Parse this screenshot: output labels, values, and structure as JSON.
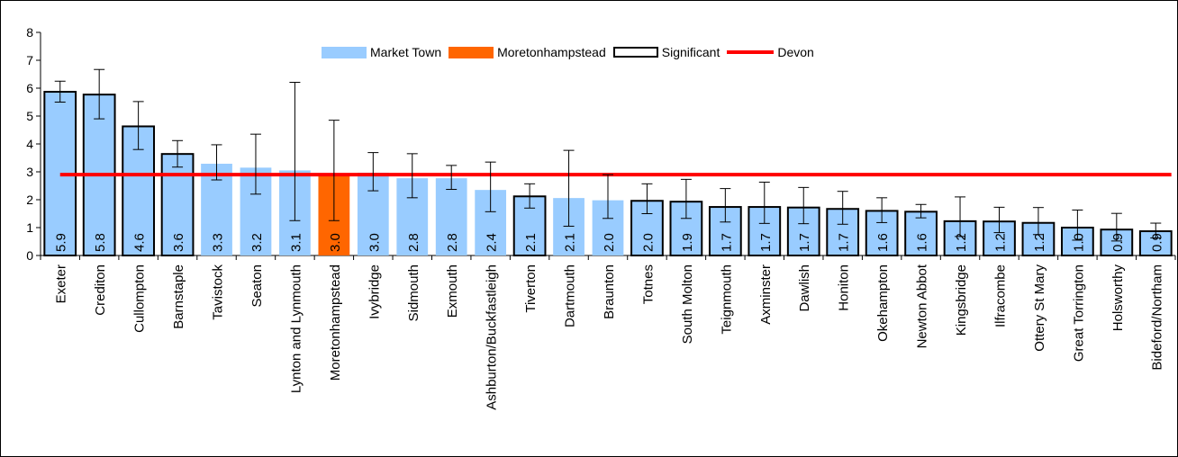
{
  "chart_data": {
    "type": "bar",
    "title": "",
    "xlabel": "",
    "ylabel": "",
    "ylim": [
      0,
      8
    ],
    "yticks": [
      "0",
      "1",
      "2",
      "3",
      "4",
      "5",
      "6",
      "7",
      "8"
    ],
    "grid": false,
    "legend_position": "top",
    "legend": [
      "Market Town",
      "Moretonhampstead",
      "Significant",
      "Devon"
    ],
    "reference_line": {
      "name": "Devon",
      "value": 2.9,
      "color": "#ff0000"
    },
    "colors": {
      "market_town": "#99ccff",
      "moretonhampstead": "#ff6600",
      "significant_border": "#000000"
    },
    "categories": [
      "Exeter",
      "Crediton",
      "Cullompton",
      "Barnstaple",
      "Tavistock",
      "Seaton",
      "Lynton and Lynmouth",
      "Moretonhampstead",
      "Ivybridge",
      "Sidmouth",
      "Exmouth",
      "Ashburton/Buckfastleigh",
      "Tiverton",
      "Dartmouth",
      "Braunton",
      "Totnes",
      "South Molton",
      "Teignmouth",
      "Axminster",
      "Dawlish",
      "Honiton",
      "Okehampton",
      "Newton Abbot",
      "Kingsbridge",
      "Ilfracombe",
      "Ottery St Mary",
      "Great Torrington",
      "Holsworthy",
      "Bideford/Northam"
    ],
    "values": [
      5.87,
      5.77,
      4.63,
      3.64,
      3.29,
      3.15,
      3.05,
      2.95,
      2.97,
      2.77,
      2.77,
      2.35,
      2.12,
      2.06,
      1.98,
      1.96,
      1.93,
      1.74,
      1.74,
      1.72,
      1.67,
      1.6,
      1.57,
      1.23,
      1.22,
      1.17,
      1.0,
      0.93,
      0.87
    ],
    "labels": [
      "5.9",
      "5.8",
      "4.6",
      "3.6",
      "3.3",
      "3.2",
      "3.1",
      "3.0",
      "3.0",
      "2.8",
      "2.8",
      "2.4",
      "2.1",
      "2.1",
      "2.0",
      "2.0",
      "1.9",
      "1.7",
      "1.7",
      "1.7",
      "1.7",
      "1.6",
      "1.6",
      "1.2",
      "1.2",
      "1.2",
      "1.0",
      "0.9",
      "0.9"
    ],
    "error_low": [
      5.5,
      4.9,
      3.8,
      3.17,
      2.71,
      2.2,
      1.25,
      1.25,
      2.32,
      2.07,
      2.37,
      1.57,
      1.7,
      1.05,
      1.33,
      1.5,
      1.33,
      1.2,
      1.15,
      1.14,
      1.12,
      1.18,
      1.35,
      0.68,
      0.82,
      0.75,
      0.55,
      0.52,
      0.63
    ],
    "error_high": [
      6.25,
      6.67,
      5.52,
      4.12,
      3.97,
      4.35,
      6.21,
      4.85,
      3.69,
      3.65,
      3.23,
      3.35,
      2.57,
      3.77,
      2.9,
      2.57,
      2.73,
      2.4,
      2.63,
      2.44,
      2.3,
      2.07,
      1.83,
      2.1,
      1.73,
      1.72,
      1.63,
      1.51,
      1.16
    ],
    "series_type": [
      "significant",
      "significant",
      "significant",
      "significant",
      "market",
      "market",
      "market",
      "moreton",
      "market",
      "market",
      "market",
      "market",
      "significant",
      "market",
      "market",
      "significant",
      "significant",
      "significant",
      "significant",
      "significant",
      "significant",
      "significant",
      "significant",
      "significant",
      "significant",
      "significant",
      "significant",
      "significant",
      "significant"
    ]
  }
}
